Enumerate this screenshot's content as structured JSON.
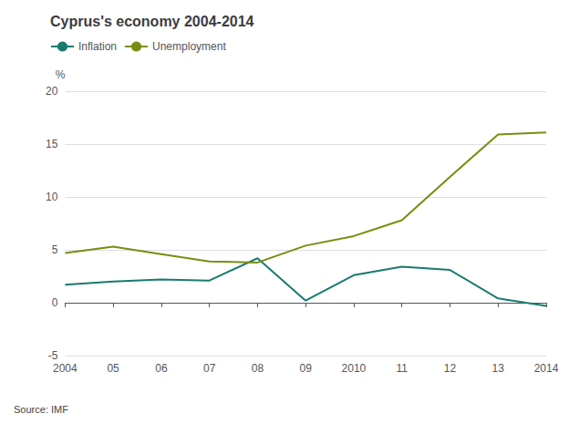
{
  "chart_data": {
    "type": "line",
    "title": "Cyprus's economy 2004-2014",
    "ylabel": "%",
    "annotations": [
      "Source: IMF"
    ],
    "categories": [
      "2004",
      "05",
      "06",
      "07",
      "08",
      "09",
      "2010",
      "11",
      "12",
      "13",
      "2014"
    ],
    "series": [
      {
        "name": "Inflation",
        "color": "#1a7a70",
        "values": [
          1.7,
          2.0,
          2.2,
          2.1,
          4.2,
          0.2,
          2.6,
          3.4,
          3.1,
          0.4,
          -0.3
        ]
      },
      {
        "name": "Unemployment",
        "color": "#7a8c10",
        "values": [
          4.7,
          5.3,
          4.6,
          3.9,
          3.8,
          5.4,
          6.3,
          7.8,
          11.9,
          15.9,
          16.1
        ]
      }
    ],
    "ylim": [
      -5,
      20
    ],
    "yticks": [
      -5,
      0,
      5,
      10,
      15,
      20
    ],
    "grid": true,
    "legend": "top-left"
  }
}
